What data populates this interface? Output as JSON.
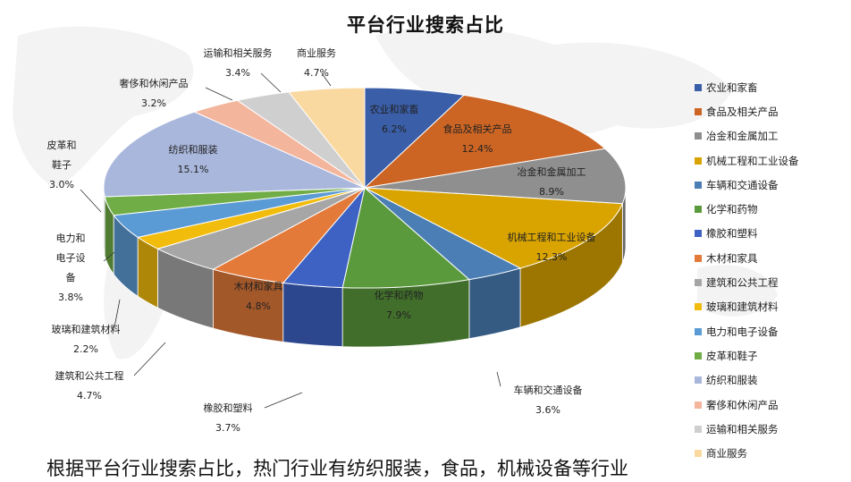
{
  "page": {
    "caption": "根据平台行业搜索占比，热门行业有纺织服装，食品，机械设备等行业"
  },
  "chart_data": {
    "type": "pie",
    "style": "3d",
    "title": "平台行业搜索占比",
    "legend_position": "right",
    "slices": [
      {
        "name": "农业和家畜",
        "value": 6.2,
        "display": "6.2%",
        "color": "#3a5ea8"
      },
      {
        "name": "食品及相关产品",
        "value": 12.4,
        "display": "12.4%",
        "color": "#cc6524"
      },
      {
        "name": "冶金和金属加工",
        "value": 8.9,
        "display": "8.9%",
        "color": "#8f8f8f"
      },
      {
        "name": "机械工程和工业设备",
        "value": 12.3,
        "display": "12.3%",
        "color": "#d9a400"
      },
      {
        "name": "车辆和交通设备",
        "value": 3.6,
        "display": "3.6%",
        "color": "#4a7eb5"
      },
      {
        "name": "化学和药物",
        "value": 7.9,
        "display": "7.9%",
        "color": "#5a9a3c"
      },
      {
        "name": "橡胶和塑料",
        "value": 3.7,
        "display": "3.7%",
        "color": "#3d62c4"
      },
      {
        "name": "木材和家具",
        "value": 4.8,
        "display": "4.8%",
        "color": "#e37a3a"
      },
      {
        "name": "建筑和公共工程",
        "value": 4.7,
        "display": "4.7%",
        "color": "#a6a6a6"
      },
      {
        "name": "玻璃和建筑材料",
        "value": 2.2,
        "display": "2.2%",
        "color": "#f2bc0c"
      },
      {
        "name": "电力和电子设备",
        "value": 3.8,
        "display": "3.8%",
        "color": "#5b9bd5"
      },
      {
        "name": "皮革和鞋子",
        "value": 3.0,
        "display": "3.0%",
        "color": "#70ad47"
      },
      {
        "name": "纺织和服装",
        "value": 15.1,
        "display": "15.1%",
        "color": "#a9b7dc"
      },
      {
        "name": "奢侈和休闲产品",
        "value": 3.2,
        "display": "3.2%",
        "color": "#f4b59d"
      },
      {
        "name": "运输和相关服务",
        "value": 3.4,
        "display": "3.4%",
        "color": "#cfcfcf"
      },
      {
        "name": "商业服务",
        "value": 4.7,
        "display": "4.7%",
        "color": "#fad9a0"
      }
    ]
  }
}
